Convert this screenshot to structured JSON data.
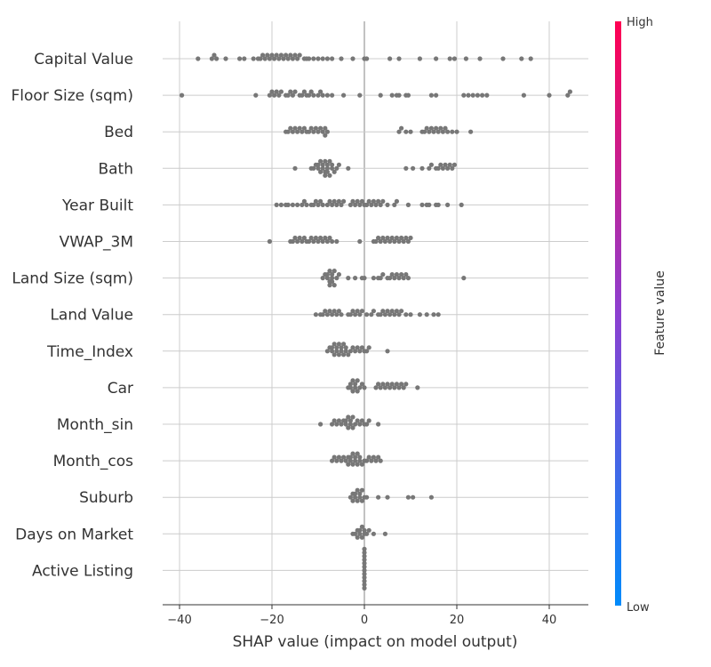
{
  "chart_data": {
    "type": "scatter",
    "subtype": "shap-beeswarm",
    "title": "",
    "xlabel": "SHAP value (impact on model output)",
    "xlim": [
      -44,
      50
    ],
    "xticks": [
      -40,
      -20,
      0,
      20,
      40
    ],
    "xtick_labels": [
      "−40",
      "−20",
      "0",
      "20",
      "40"
    ],
    "grid": true,
    "point_color": "#777777",
    "colorbar": {
      "label": "Feature value",
      "high_label": "High",
      "low_label": "Low",
      "high_color": "#ff0052",
      "low_color": "#008bfb"
    },
    "features": [
      {
        "name": "Capital Value",
        "values": [
          -36,
          -33,
          -32.5,
          -32,
          -30,
          -27,
          -26,
          -24,
          -23,
          -22.5,
          -22,
          -21.5,
          -21,
          -20.5,
          -20,
          -19.5,
          -19,
          -18.5,
          -18,
          -17.5,
          -17,
          -16.5,
          -16,
          -15.5,
          -15,
          -14.5,
          -14,
          -13,
          -12.5,
          -12,
          -11,
          -10,
          -9,
          -8,
          -7,
          -5,
          -2.5,
          0,
          0.5,
          5.5,
          7.5,
          12,
          15.5,
          18.5,
          19.5,
          22,
          25,
          30,
          34,
          36
        ]
      },
      {
        "name": "Floor Size (sqm)",
        "values": [
          -39.5,
          -23.5,
          -20.5,
          -20,
          -19.5,
          -19,
          -18.5,
          -18,
          -17,
          -16.5,
          -16,
          -15.5,
          -15,
          -14,
          -13.5,
          -13,
          -12.5,
          -12,
          -11.5,
          -11,
          -10,
          -9.5,
          -9,
          -8,
          -7,
          -4.5,
          -1,
          3.5,
          6,
          7,
          7.5,
          9,
          9.5,
          14.5,
          15.5,
          21.5,
          22.5,
          23.5,
          24.5,
          25.5,
          26.5,
          34.5,
          40,
          44,
          44.5
        ]
      },
      {
        "name": "Bed",
        "values": [
          -17,
          -16.5,
          -16,
          -15.5,
          -15,
          -14.5,
          -14,
          -13.5,
          -13,
          -12.5,
          -12,
          -11.5,
          -11,
          -10.5,
          -10,
          -9.5,
          -9,
          -8.5,
          -8.5,
          -8,
          7.5,
          8,
          9,
          10,
          12.5,
          13,
          13.5,
          14,
          14.5,
          15,
          15.5,
          16,
          16.5,
          17,
          17.5,
          18,
          19,
          20,
          23
        ]
      },
      {
        "name": "Bath",
        "values": [
          -15,
          -11.5,
          -11,
          -10.5,
          -10,
          -10,
          -9.5,
          -9.5,
          -9,
          -9,
          -8.5,
          -8.5,
          -8.5,
          -8,
          -8,
          -8,
          -7.5,
          -7.5,
          -7,
          -7,
          -6.5,
          -6,
          -5.5,
          -3.5,
          9,
          10.5,
          12.5,
          14,
          14.5,
          15.5,
          16,
          16.5,
          17,
          17.5,
          18,
          18.5,
          19,
          19.5
        ]
      },
      {
        "name": "Year Built",
        "values": [
          -19,
          -18,
          -17,
          -16.5,
          -15.5,
          -14.5,
          -13.5,
          -13,
          -12.5,
          -11.5,
          -11,
          -10.5,
          -10,
          -9.5,
          -9,
          -8,
          -7.5,
          -7,
          -6.5,
          -6,
          -5.5,
          -5,
          -4.5,
          -3,
          -2.5,
          -2,
          -1.5,
          -1,
          -0.5,
          0,
          0.5,
          1,
          1.5,
          2,
          2.5,
          3,
          3.5,
          4,
          5,
          6.5,
          7,
          9.5,
          12.5,
          13.5,
          14,
          15.5,
          16,
          18,
          21
        ]
      },
      {
        "name": "VWAP_3M",
        "values": [
          -20.5,
          -16,
          -15.5,
          -15,
          -14.5,
          -14,
          -13.5,
          -13,
          -12.5,
          -12,
          -11.5,
          -11,
          -10.5,
          -10,
          -9.5,
          -9,
          -8.5,
          -8,
          -7.5,
          -7,
          -6,
          -1,
          2,
          2.5,
          3,
          3.5,
          4,
          4.5,
          5,
          5.5,
          6,
          6.5,
          7,
          7.5,
          8,
          8.5,
          9,
          9.5,
          10
        ]
      },
      {
        "name": "Land Size (sqm)",
        "values": [
          -9,
          -8.5,
          -8,
          -8,
          -7.5,
          -7.5,
          -7.5,
          -7,
          -7,
          -7,
          -6.5,
          -6.5,
          -6,
          -5.5,
          -3.5,
          -2,
          -0.5,
          0,
          2,
          3,
          3.5,
          4,
          5,
          5.5,
          6,
          6.5,
          7,
          7.5,
          8,
          8.5,
          9,
          9.5,
          21.5
        ]
      },
      {
        "name": "Land Value",
        "values": [
          -10.5,
          -9.5,
          -9,
          -8.5,
          -8,
          -7.5,
          -7,
          -6.5,
          -6,
          -5.5,
          -5,
          -3.5,
          -3,
          -2.5,
          -2,
          -1.5,
          -1,
          -0.5,
          0.5,
          1.5,
          2,
          3,
          3.5,
          4,
          4.5,
          5,
          5.5,
          6,
          6.5,
          7,
          7.5,
          8,
          9,
          10,
          12,
          13.5,
          15,
          16
        ]
      },
      {
        "name": "Time_Index",
        "values": [
          -8,
          -7.5,
          -7,
          -7,
          -6.5,
          -6.5,
          -6,
          -6,
          -5.5,
          -5.5,
          -5,
          -5,
          -4.5,
          -4.5,
          -4,
          -4,
          -3.5,
          -3,
          -2.5,
          -2,
          -1.5,
          -1,
          -0.5,
          0,
          0.5,
          1,
          5
        ]
      },
      {
        "name": "Car",
        "values": [
          -3.5,
          -3,
          -3,
          -2.5,
          -2.5,
          -2,
          -2,
          -1.5,
          -1.5,
          -1,
          -0.5,
          0,
          2.5,
          3,
          3.5,
          4,
          4.5,
          5,
          5.5,
          6,
          6.5,
          7,
          7.5,
          8,
          8.5,
          9,
          11.5
        ]
      },
      {
        "name": "Month_sin",
        "values": [
          -9.5,
          -7,
          -6.5,
          -6,
          -5.5,
          -5,
          -4.5,
          -4,
          -4,
          -3.5,
          -3.5,
          -3,
          -3,
          -2.5,
          -2.5,
          -2,
          -1.5,
          -1,
          -0.5,
          0,
          0.5,
          1,
          3
        ]
      },
      {
        "name": "Month_cos",
        "values": [
          -7,
          -6.5,
          -6,
          -5.5,
          -5,
          -4.5,
          -4,
          -3.5,
          -3.5,
          -3,
          -3,
          -2.5,
          -2.5,
          -2,
          -2,
          -1.5,
          -1.5,
          -1,
          -1,
          -0.5,
          0,
          0.5,
          1,
          1.5,
          2,
          2.5,
          3,
          3.5
        ]
      },
      {
        "name": "Suburb",
        "values": [
          -3,
          -2.5,
          -2.5,
          -2,
          -2,
          -1.5,
          -1.5,
          -1,
          -1,
          -0.5,
          -0.5,
          0,
          0.5,
          3,
          5,
          9.5,
          10.5,
          14.5
        ]
      },
      {
        "name": "Days on Market",
        "values": [
          -2.5,
          -2,
          -1.5,
          -1.5,
          -1,
          -1,
          -0.5,
          -0.5,
          0,
          0,
          0.5,
          1,
          2,
          4.5
        ]
      },
      {
        "name": "Active Listing",
        "values": [
          0,
          0,
          0,
          0,
          0,
          0,
          0,
          0,
          0,
          0,
          0,
          0
        ]
      }
    ]
  }
}
